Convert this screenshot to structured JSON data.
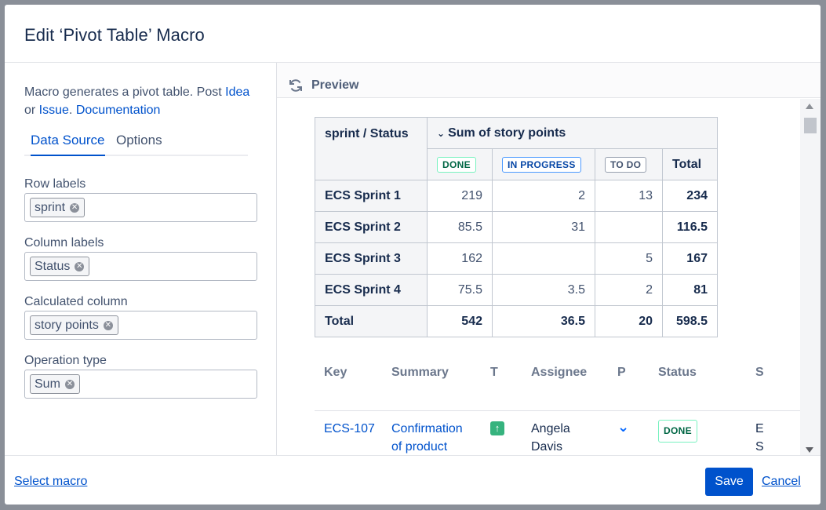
{
  "dialog": {
    "title": "Edit ‘Pivot Table’ Macro"
  },
  "left": {
    "desc_text": "Macro generates a pivot table. Post ",
    "desc_link_idea": "Idea",
    "desc_or": "or ",
    "desc_link_issue": "Issue",
    "desc_dot": ". ",
    "desc_link_docs": "Documentation",
    "tabs": [
      {
        "label": "Data Source",
        "active": true
      },
      {
        "label": "Options",
        "active": false
      }
    ],
    "fields": {
      "row_labels": {
        "label": "Row labels",
        "chip": "sprint"
      },
      "column_labels": {
        "label": "Column labels",
        "chip": "Status"
      },
      "calculated_column": {
        "label": "Calculated column",
        "chip": "story points"
      },
      "operation_type": {
        "label": "Operation type",
        "chip": "Sum"
      }
    }
  },
  "preview": {
    "label": "Preview",
    "icon": "refresh-icon"
  },
  "pivot": {
    "corner": "sprint / Status",
    "group_header": "Sum of story points",
    "columns": [
      "DONE",
      "IN PROGRESS",
      "TO DO",
      "Total"
    ],
    "rows": [
      {
        "label": "ECS Sprint 1",
        "done": "219",
        "progress": "2",
        "todo": "13",
        "total": "234"
      },
      {
        "label": "ECS Sprint 2",
        "done": "85.5",
        "progress": "31",
        "todo": "",
        "total": "116.5"
      },
      {
        "label": "ECS Sprint 3",
        "done": "162",
        "progress": "",
        "todo": "5",
        "total": "167"
      },
      {
        "label": "ECS Sprint 4",
        "done": "75.5",
        "progress": "3.5",
        "todo": "2",
        "total": "81"
      }
    ],
    "total_row": {
      "label": "Total",
      "done": "542",
      "progress": "36.5",
      "todo": "20",
      "total": "598.5"
    }
  },
  "issues": {
    "headers": {
      "key": "Key",
      "summary": "Summary",
      "type": "T",
      "assignee": "Assignee",
      "priority": "P",
      "status": "Status",
      "next": "S"
    },
    "row": {
      "key": "ECS-107",
      "summary_line1": "Confirmation",
      "summary_line2": "of product",
      "assignee_line1": "Angela",
      "assignee_line2": "Davis",
      "status": "DONE",
      "next_line1": "E",
      "next_line2": "S"
    }
  },
  "footer": {
    "select_macro": "Select macro",
    "save": "Save",
    "cancel": "Cancel"
  },
  "colors": {
    "primary": "#0052cc",
    "done": "#006644",
    "in_progress": "#0747a6"
  }
}
